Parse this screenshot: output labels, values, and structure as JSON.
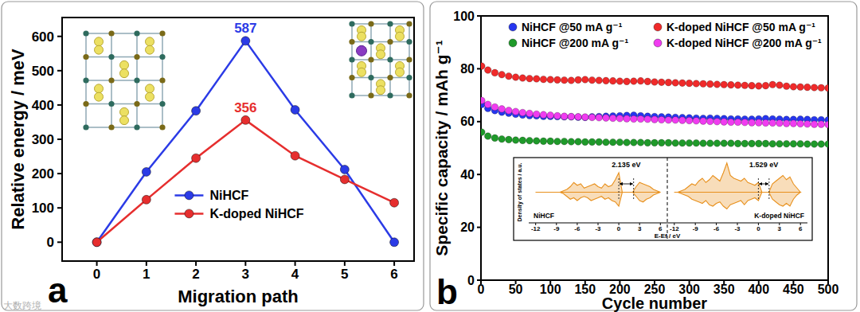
{
  "watermark": "大数跨境",
  "chart_data": [
    {
      "type": "line",
      "title": "a",
      "x_label": "Migration path",
      "y_label": "Relative energy / meV",
      "x": [
        0,
        1,
        2,
        3,
        4,
        5,
        6
      ],
      "xlim": [
        -0.7,
        6.4
      ],
      "xticks": [
        0,
        1,
        2,
        3,
        4,
        5,
        6
      ],
      "ylim": [
        -55,
        655
      ],
      "yticks": [
        0,
        100,
        200,
        300,
        400,
        500,
        600
      ],
      "grid": false,
      "legend": "center",
      "series": [
        {
          "name": "NiHCF",
          "color": "#2b3be6",
          "marker": "circle",
          "line_style": "solid",
          "values": [
            0,
            205,
            383,
            587,
            386,
            212,
            0
          ]
        },
        {
          "name": "K-doped NiHCF",
          "color": "#e62e2e",
          "marker": "circle",
          "line_style": "solid",
          "values": [
            0,
            124,
            245,
            356,
            252,
            183,
            115
          ]
        }
      ],
      "annotations": [
        {
          "text": "587",
          "x": 3,
          "y": 587,
          "color": "#2b3be6"
        },
        {
          "text": "356",
          "x": 3,
          "y": 356,
          "color": "#e62e2e"
        }
      ]
    },
    {
      "type": "scatter",
      "title": "b",
      "x_label": "Cycle number",
      "y_label": "Specific capacity / mAh g⁻¹",
      "x": [
        1,
        10,
        20,
        30,
        40,
        50,
        60,
        70,
        80,
        90,
        100,
        110,
        120,
        130,
        140,
        150,
        160,
        170,
        180,
        190,
        200,
        210,
        220,
        230,
        240,
        250,
        260,
        270,
        280,
        290,
        300,
        310,
        320,
        330,
        340,
        350,
        360,
        370,
        380,
        390,
        400,
        410,
        420,
        430,
        440,
        450,
        460,
        470,
        480,
        490,
        500
      ],
      "xlim": [
        0,
        500
      ],
      "xticks": [
        0,
        50,
        100,
        150,
        200,
        250,
        300,
        350,
        400,
        450,
        500
      ],
      "ylim": [
        0,
        100
      ],
      "yticks": [
        0,
        20,
        40,
        60,
        80,
        100
      ],
      "grid": false,
      "legend": "top",
      "marker": "circle",
      "series": [
        {
          "name": "NiHCF @50 mA g⁻¹",
          "color": "#2636f0",
          "values": [
            66.5,
            65,
            64.2,
            63.6,
            63.2,
            62.8,
            62.5,
            62.3,
            62.2,
            62,
            62,
            61.9,
            61.8,
            61.8,
            61.7,
            61.6,
            61.8,
            61.9,
            62,
            62.1,
            62.2,
            62.3,
            62.4,
            62.2,
            62,
            61.9,
            61.8,
            61.7,
            61.6,
            61.5,
            61.4,
            61.3,
            61.2,
            61.3,
            61.2,
            61.1,
            61,
            61,
            60.9,
            60.9,
            61,
            61.1,
            61,
            60.9,
            60.8,
            60.8,
            60.9,
            60.8,
            60.7,
            60.7,
            60.6
          ]
        },
        {
          "name": "K-doped NiHCF @50 mA g⁻¹",
          "color": "#f02a2a",
          "values": [
            81,
            79.5,
            78.5,
            77.8,
            77.2,
            76.8,
            76.5,
            76.3,
            76.2,
            76,
            75.9,
            75.8,
            75.7,
            75.6,
            75.8,
            75.9,
            75.7,
            75.6,
            75.5,
            75.4,
            75.3,
            75.2,
            75.3,
            75.4,
            75.2,
            75,
            74.9,
            74.8,
            74.7,
            74.6,
            74.5,
            74.4,
            74.3,
            74.2,
            74.1,
            74,
            73.9,
            73.8,
            73.7,
            73.6,
            73.5,
            73.6,
            74,
            73.8,
            73.4,
            73.2,
            73.1,
            73,
            72.9,
            72.8,
            72.7
          ]
        },
        {
          "name": "NiHCF @200 mA g⁻¹",
          "color": "#1f9a2a",
          "values": [
            56,
            54.5,
            53.8,
            53.4,
            53.2,
            53,
            52.9,
            52.8,
            52.7,
            52.6,
            52.6,
            52.5,
            52.5,
            52.4,
            52.4,
            52.3,
            52.3,
            52.3,
            52.2,
            52.2,
            52.2,
            52.1,
            52.1,
            52.1,
            52,
            52,
            52,
            52,
            51.9,
            51.9,
            51.9,
            51.9,
            51.8,
            51.8,
            51.8,
            51.8,
            51.8,
            51.7,
            51.7,
            51.7,
            51.7,
            51.7,
            51.6,
            51.6,
            51.6,
            51.6,
            51.6,
            51.5,
            51.5,
            51.5,
            51.5
          ]
        },
        {
          "name": "K-doped NiHCF @200 mA g⁻¹",
          "color": "#f03cf0",
          "values": [
            68,
            66.5,
            65.5,
            64.8,
            64.2,
            63.8,
            63.4,
            63.1,
            62.8,
            62.6,
            62.4,
            62.2,
            62,
            61.9,
            61.8,
            61.7,
            61.6,
            61.5,
            61.4,
            61.3,
            61.2,
            61.1,
            61,
            61,
            60.9,
            60.8,
            60.7,
            60.6,
            60.6,
            60.5,
            60.4,
            60.3,
            60.2,
            60.1,
            60,
            59.9,
            59.8,
            59.8,
            59.7,
            59.6,
            59.6,
            59.5,
            59.5,
            59.4,
            59.3,
            59.3,
            59.2,
            59.1,
            59,
            59,
            58.9
          ]
        }
      ]
    },
    {
      "type": "area",
      "title": "NiHCF",
      "y_label": "Density of states / a.u.",
      "x_label": "E-Ef / eV",
      "x": [
        -12,
        -11.5,
        -11,
        -10.5,
        -10,
        -9.5,
        -9,
        -8.5,
        -8,
        -7.5,
        -7,
        -6.5,
        -6,
        -5.5,
        -5,
        -4.5,
        -4,
        -3.5,
        -3,
        -2.5,
        -2,
        -1.5,
        -1,
        -0.5,
        0,
        0.5,
        1,
        1.5,
        2,
        2.5,
        3,
        3.5,
        4,
        4.5,
        5,
        5.5,
        6
      ],
      "xlim": [
        -13,
        7
      ],
      "xticks": [
        -12,
        -9,
        -6,
        -3,
        0,
        3,
        6
      ],
      "ylim": [
        -1.1,
        1.1
      ],
      "tick_labels": "x",
      "grid": false,
      "color": "#e8901c",
      "series": [
        {
          "values": [
            0,
            0,
            0,
            0,
            0,
            0,
            0,
            0,
            0.05,
            0.1,
            0.2,
            0.35,
            0.25,
            0.3,
            0.15,
            0.2,
            0.25,
            0.3,
            0.2,
            0.15,
            0.3,
            0.2,
            0.25,
            0.45,
            0.7,
            0,
            0,
            0,
            0,
            0.2,
            0.35,
            0.3,
            0.25,
            0.2,
            0.1,
            0.05,
            0
          ]
        },
        {
          "values": [
            0,
            0,
            0,
            0,
            0,
            0,
            0,
            0,
            -0.05,
            -0.15,
            -0.25,
            -0.2,
            -0.3,
            -0.2,
            -0.15,
            -0.2,
            -0.3,
            -0.25,
            -0.2,
            -0.15,
            -0.25,
            -0.2,
            -0.3,
            -0.35,
            -0.5,
            0,
            0,
            0,
            0,
            -0.15,
            -0.3,
            -0.35,
            -0.25,
            -0.2,
            -0.1,
            -0.05,
            0
          ]
        }
      ],
      "annotations": [
        {
          "text": "2.135 eV",
          "x1": 0,
          "x2": 2.135
        }
      ]
    },
    {
      "type": "area",
      "title": "K-doped NiHCF",
      "x": [
        -12,
        -11.5,
        -11,
        -10.5,
        -10,
        -9.5,
        -9,
        -8.5,
        -8,
        -7.5,
        -7,
        -6.5,
        -6,
        -5.5,
        -5,
        -4.5,
        -4,
        -3.5,
        -3,
        -2.5,
        -2,
        -1.5,
        -1,
        -0.5,
        0,
        0.5,
        1,
        1.5,
        2,
        2.5,
        3,
        3.5,
        4,
        4.5,
        5,
        5.5,
        6
      ],
      "xlim": [
        -13,
        7
      ],
      "xticks": [
        -12,
        -9,
        -6,
        -3,
        0,
        3,
        6
      ],
      "ylim": [
        -1.1,
        1.1
      ],
      "tick_labels": "x",
      "grid": false,
      "color": "#e8901c",
      "series": [
        {
          "values": [
            0,
            0,
            0.05,
            0.1,
            0.2,
            0.3,
            0.25,
            0.4,
            0.5,
            0.35,
            0.45,
            0.6,
            0.5,
            0.4,
            0.7,
            1.05,
            0.6,
            0.5,
            0.45,
            0.4,
            0.5,
            0.35,
            0.3,
            0.25,
            0.35,
            0,
            0,
            0,
            0.3,
            0.4,
            0.5,
            0.6,
            0.45,
            0.55,
            0.3,
            0.15,
            0
          ]
        },
        {
          "values": [
            0,
            0,
            -0.05,
            -0.1,
            -0.15,
            -0.25,
            -0.3,
            -0.35,
            -0.4,
            -0.3,
            -0.45,
            -0.5,
            -0.4,
            -0.35,
            -0.5,
            -0.6,
            -0.45,
            -0.4,
            -0.35,
            -0.3,
            -0.45,
            -0.3,
            -0.25,
            -0.2,
            -0.3,
            0,
            0,
            0,
            -0.25,
            -0.35,
            -0.45,
            -0.5,
            -0.4,
            -0.5,
            -0.25,
            -0.1,
            0
          ]
        }
      ],
      "annotations": [
        {
          "text": "1.529 eV",
          "x1": 0,
          "x2": 1.529
        }
      ]
    }
  ]
}
